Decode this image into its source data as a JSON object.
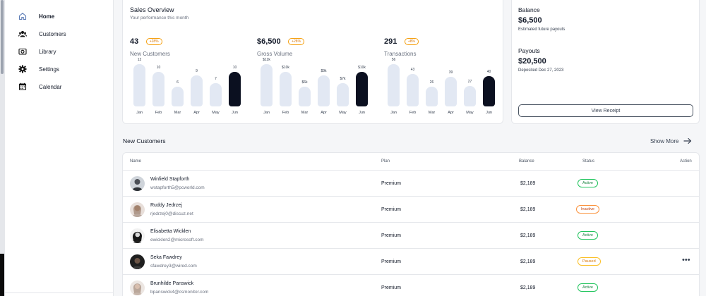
{
  "sidebar": {
    "items": [
      {
        "label": "Home",
        "icon": "home-icon",
        "active": true
      },
      {
        "label": "Customers",
        "icon": "customers-icon",
        "active": false
      },
      {
        "label": "Library",
        "icon": "library-icon",
        "active": false
      },
      {
        "label": "Settings",
        "icon": "gear-icon",
        "active": false
      },
      {
        "label": "Calendar",
        "icon": "calendar-icon",
        "active": false
      }
    ]
  },
  "overview": {
    "title": "Sales Overview",
    "subtitle": "Your performance this month",
    "metrics": [
      {
        "value": "43",
        "change": "+28%",
        "label": "New Customers"
      },
      {
        "value": "$6,500",
        "change": "+28%",
        "label": "Gross Volume"
      },
      {
        "value": "291",
        "change": "+8%",
        "label": "Transactions"
      }
    ]
  },
  "chart_data": [
    {
      "type": "bar",
      "categories": [
        "Jan",
        "Feb",
        "Mar",
        "Apr",
        "May",
        "Jun"
      ],
      "values": [
        12,
        10,
        6,
        9,
        7,
        10
      ],
      "value_labels": [
        "12",
        "10",
        "6",
        "9",
        "7",
        "10"
      ],
      "highlight_index": 5
    },
    {
      "type": "bar",
      "categories": [
        "Jan",
        "Feb",
        "Mar",
        "Apr",
        "May",
        "Jun"
      ],
      "values": [
        12000,
        10000,
        6000,
        9000,
        7000,
        10000
      ],
      "value_labels": [
        "$12k",
        "$10k",
        "$6k",
        "$9k",
        "$7k",
        "$10k"
      ],
      "highlight_index": 5
    },
    {
      "type": "bar",
      "categories": [
        "Jan",
        "Feb",
        "Mar",
        "Apr",
        "May",
        "Jun"
      ],
      "values": [
        56,
        43,
        26,
        39,
        27,
        40
      ],
      "value_labels": [
        "56",
        "43",
        "26",
        "39",
        "27",
        "40"
      ],
      "highlight_index": 5
    }
  ],
  "balance": {
    "title": "Balance",
    "amount": "$6,500",
    "sub": "Estimated future payouts",
    "payouts_title": "Payouts",
    "payouts_amount": "$20,500",
    "payouts_sub": "Deposited Dec 27, 2023",
    "receipt_button": "View Receipt"
  },
  "customers": {
    "title": "New Customers",
    "show_more": "Show More",
    "headers": {
      "name": "Name",
      "plan": "Plan",
      "balance": "Balance",
      "status": "Status",
      "action": "Action"
    },
    "rows": [
      {
        "name": "Winfield Stapforth",
        "email": "wstapforth5@pcworld.com",
        "plan": "Premium",
        "balance": "$2,189",
        "status": "Active"
      },
      {
        "name": "Ruddy Jedrzej",
        "email": "rjedrzej0@discuz.net",
        "plan": "Premium",
        "balance": "$2,189",
        "status": "Inactive"
      },
      {
        "name": "Elisabetta Wicklen",
        "email": "ewicklen2@microsoft.com",
        "plan": "Premium",
        "balance": "$2,189",
        "status": "Active"
      },
      {
        "name": "Seka Fawdrey",
        "email": "sfawdrey3@wired.com",
        "plan": "Premium",
        "balance": "$2,189",
        "status": "Paused",
        "action": "•••"
      },
      {
        "name": "Brunhilde Panswick",
        "email": "bpanswick4@csmonitor.com",
        "plan": "Premium",
        "balance": "$2,189",
        "status": "Active"
      }
    ]
  }
}
